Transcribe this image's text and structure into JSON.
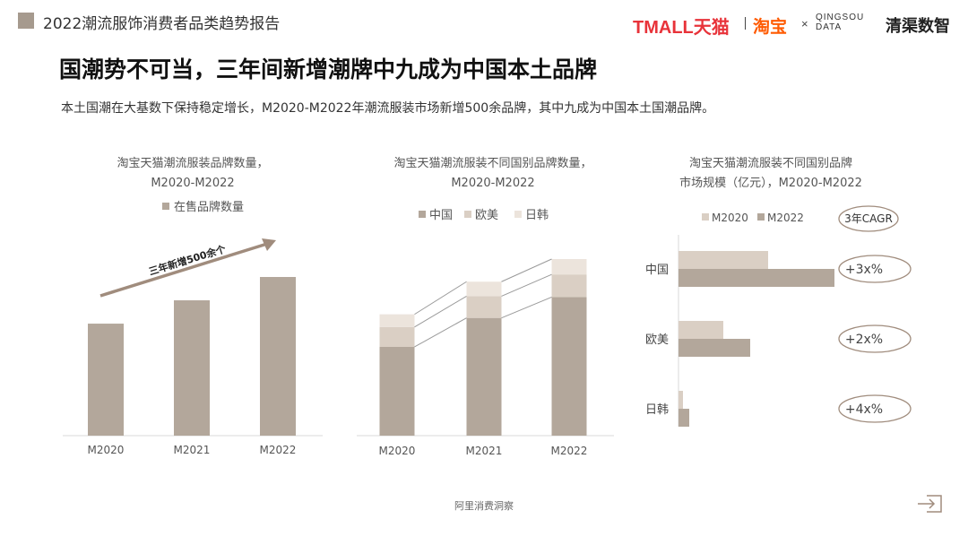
{
  "header": {
    "report_title": "2022潮流服饰消费者品类趋势报告",
    "logo_tmall": "TMALL天猫",
    "logo_taobao": "淘宝",
    "logo_x": "×",
    "logo_qingsou": "QINGSOU DATA",
    "logo_qingqu": "清渠数智"
  },
  "title": "国潮势不可当，三年间新增潮牌中九成为中国本土品牌",
  "subtitle": "本土国潮在大基数下保持稳定增长，M2020-M2022年潮流服装市场新增500余品牌，其中九成为中国本土国潮品牌。",
  "footer": "阿里消费洞察",
  "colors": {
    "primary": "#b3a79b",
    "light": "#dacfc4",
    "lighter": "#ece4dc",
    "accent": "#a08c7d"
  },
  "chart_data": [
    {
      "type": "bar",
      "title_line1": "淘宝天猫潮流服装品牌数量，",
      "title_line2": "M2020-M2022",
      "categories": [
        "M2020",
        "M2021",
        "M2022"
      ],
      "series": [
        {
          "name": "在售品牌数量",
          "values": [
            1200,
            1450,
            1700
          ]
        }
      ],
      "annotation": "三年新增500余个"
    },
    {
      "type": "bar",
      "stacked": true,
      "title_line1": "淘宝天猫潮流服装不同国别品牌数量，",
      "title_line2": "M2020-M2022",
      "categories": [
        "M2020",
        "M2021",
        "M2022"
      ],
      "series": [
        {
          "name": "中国",
          "values": [
            980,
            1300,
            1530
          ]
        },
        {
          "name": "欧美",
          "values": [
            220,
            240,
            250
          ]
        },
        {
          "name": "日韩",
          "values": [
            140,
            160,
            170
          ]
        }
      ]
    },
    {
      "type": "bar",
      "orientation": "horizontal",
      "title_line1": "淘宝天猫潮流服装不同国别品牌",
      "title_line2": "市场规模（亿元），M2020-M2022",
      "categories": [
        "中国",
        "欧美",
        "日韩"
      ],
      "series": [
        {
          "name": "M2020",
          "values": [
            100,
            50,
            5
          ]
        },
        {
          "name": "M2022",
          "values": [
            174,
            80,
            12
          ]
        }
      ],
      "cagr_header": "3年CAGR",
      "cagr_labels": [
        "+3x%",
        "+2x%",
        "+4x%"
      ]
    }
  ]
}
